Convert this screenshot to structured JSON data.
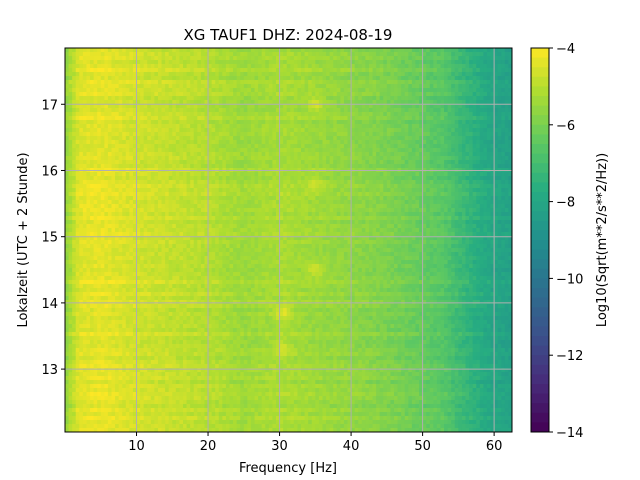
{
  "chart_data": {
    "type": "heatmap",
    "title": "XG TAUF1  DHZ: 2024-08-19",
    "xlabel": "Frequency [Hz]",
    "ylabel": "Lokalzeit (UTC + 2 Stunde)",
    "colorbar_label": "Log10(Sqrt(m**2/s**2/Hz))",
    "colormap": "viridis",
    "xlim": [
      0,
      62.5
    ],
    "ylim": [
      17.85,
      12.05
    ],
    "clim": [
      -14,
      -4
    ],
    "x_ticks": [
      10,
      20,
      30,
      40,
      50,
      60
    ],
    "y_ticks": [
      13,
      14,
      15,
      16,
      17
    ],
    "colorbar_ticks": [
      -4,
      -6,
      -8,
      -10,
      -12,
      -14
    ],
    "grid": true,
    "profile": {
      "frequency_hz": [
        0,
        2,
        5,
        10,
        15,
        20,
        25,
        30,
        35,
        40,
        45,
        50,
        53,
        55,
        58,
        60,
        62.5
      ],
      "log10_amplitude": [
        -5.6,
        -4.4,
        -4.3,
        -4.6,
        -4.8,
        -5.0,
        -5.4,
        -5.2,
        -5.4,
        -5.6,
        -5.9,
        -6.3,
        -6.6,
        -7.1,
        -7.7,
        -8.0,
        -8.2
      ]
    },
    "highlights": [
      {
        "frequency_hz": 30.5,
        "time_h": 13.85,
        "log10_amplitude": -4.2
      },
      {
        "frequency_hz": 30.5,
        "time_h": 13.3,
        "log10_amplitude": -4.4
      },
      {
        "frequency_hz": 35,
        "time_h": 14.5,
        "log10_amplitude": -4.5
      },
      {
        "frequency_hz": 35,
        "time_h": 15.8,
        "log10_amplitude": -4.6
      },
      {
        "frequency_hz": 35,
        "time_h": 17.0,
        "log10_amplitude": -4.5
      }
    ]
  }
}
